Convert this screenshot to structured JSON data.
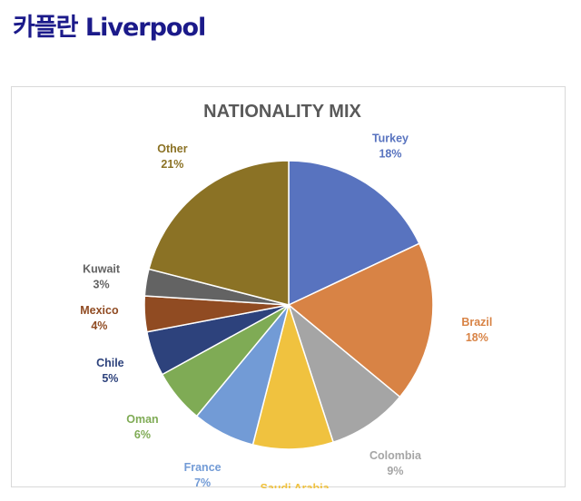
{
  "page": {
    "title": "카플란 Liverpool"
  },
  "chart_data": {
    "type": "pie",
    "title": "NATIONALITY MIX",
    "value_suffix": "%",
    "slices": [
      {
        "label": "Turkey",
        "value": 18,
        "color": "#5873bf"
      },
      {
        "label": "Brazil",
        "value": 18,
        "color": "#d88345"
      },
      {
        "label": "Colombia",
        "value": 9,
        "color": "#a5a5a5"
      },
      {
        "label": "Saudi Arabia",
        "value": 9,
        "color": "#f0c23f"
      },
      {
        "label": "France",
        "value": 7,
        "color": "#729bd6"
      },
      {
        "label": "Oman",
        "value": 6,
        "color": "#7fab55"
      },
      {
        "label": "Chile",
        "value": 5,
        "color": "#2d427c"
      },
      {
        "label": "Mexico",
        "value": 4,
        "color": "#904b22"
      },
      {
        "label": "Kuwait",
        "value": 3,
        "color": "#636363"
      },
      {
        "label": "Other",
        "value": 21,
        "color": "#8b7225"
      }
    ]
  }
}
